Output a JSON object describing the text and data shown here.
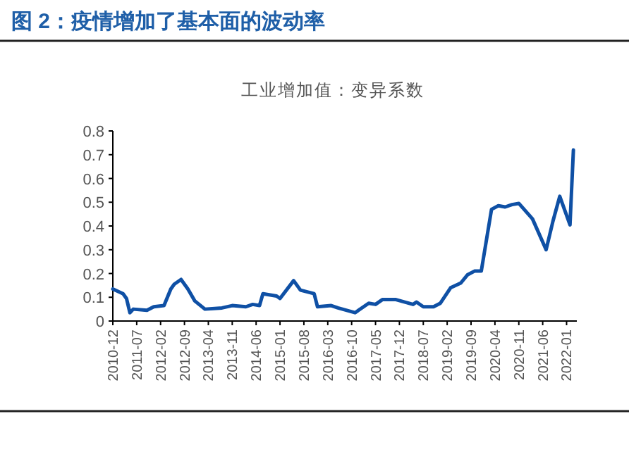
{
  "chart_data": {
    "type": "line",
    "title": "图 2：疫情增加了基本面的波动率",
    "subtitle": "工业增加值：变异系数",
    "x": [
      "2010-12",
      "2011-03",
      "2011-04",
      "2011-05",
      "2011-06",
      "2011-10",
      "2011-12",
      "2012-03",
      "2012-05",
      "2012-06",
      "2012-08",
      "2012-10",
      "2012-12",
      "2013-03",
      "2013-08",
      "2013-11",
      "2014-03",
      "2014-05",
      "2014-07",
      "2014-08",
      "2014-12",
      "2015-01",
      "2015-05",
      "2015-07",
      "2015-11",
      "2015-12",
      "2016-04",
      "2016-06",
      "2016-11",
      "2017-03",
      "2017-05",
      "2017-07",
      "2017-11",
      "2018-04",
      "2018-05",
      "2018-07",
      "2018-10",
      "2018-12",
      "2019-03",
      "2019-06",
      "2019-08",
      "2019-10",
      "2019-12",
      "2020-03",
      "2020-05",
      "2020-07",
      "2020-09",
      "2020-11",
      "2021-03",
      "2021-07",
      "2021-09",
      "2021-11",
      "2022-02",
      "2022-03"
    ],
    "series": [
      {
        "color": "#0f50a5",
        "values": [
          0.135,
          0.115,
          0.095,
          0.035,
          0.05,
          0.045,
          0.06,
          0.065,
          0.135,
          0.155,
          0.175,
          0.135,
          0.085,
          0.05,
          0.055,
          0.065,
          0.06,
          0.07,
          0.065,
          0.115,
          0.105,
          0.095,
          0.17,
          0.13,
          0.115,
          0.06,
          0.065,
          0.055,
          0.035,
          0.075,
          0.07,
          0.09,
          0.09,
          0.07,
          0.08,
          0.06,
          0.06,
          0.075,
          0.14,
          0.16,
          0.195,
          0.21,
          0.21,
          0.47,
          0.485,
          0.48,
          0.49,
          0.495,
          0.43,
          0.3,
          0.42,
          0.525,
          0.405,
          0.72
        ]
      }
    ],
    "xlim": [
      "2010-12",
      "2022-04"
    ],
    "xticks": [
      "2010-12",
      "2011-07",
      "2012-02",
      "2012-09",
      "2013-04",
      "2013-11",
      "2014-06",
      "2015-01",
      "2015-08",
      "2016-03",
      "2016-10",
      "2017-05",
      "2017-12",
      "2018-07",
      "2019-02",
      "2019-09",
      "2020-04",
      "2020-11",
      "2021-06",
      "2022-01"
    ],
    "ylim": [
      0,
      0.8
    ],
    "yticks": [
      0,
      0.1,
      0.2,
      0.3,
      0.4,
      0.5,
      0.6,
      0.7,
      0.8
    ],
    "grid": false,
    "marker": "none",
    "line_style": "solid"
  }
}
